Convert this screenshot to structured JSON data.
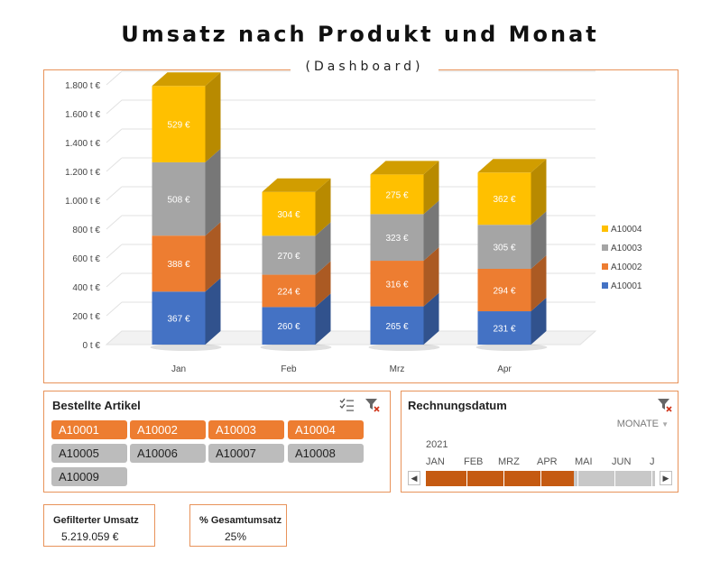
{
  "header": {
    "title": "Umsatz nach Produkt und Monat",
    "subtitle": "(Dashboard)"
  },
  "chart_data": {
    "type": "bar",
    "stacked": true,
    "three_d": true,
    "categories": [
      "Jan",
      "Feb",
      "Mrz",
      "Apr"
    ],
    "series": [
      {
        "name": "A10001",
        "color": "#4472c4",
        "values": [
          367,
          260,
          265,
          231
        ],
        "labels": [
          "367 €",
          "260 €",
          "265 €",
          "231 €"
        ]
      },
      {
        "name": "A10002",
        "color": "#ed7d31",
        "values": [
          388,
          224,
          316,
          294
        ],
        "labels": [
          "388 €",
          "224 €",
          "316 €",
          "294 €"
        ]
      },
      {
        "name": "A10003",
        "color": "#a5a5a5",
        "values": [
          508,
          270,
          323,
          305
        ],
        "labels": [
          "508 €",
          "270 €",
          "323 €",
          "305 €"
        ]
      },
      {
        "name": "A10004",
        "color": "#ffc000",
        "values": [
          529,
          304,
          275,
          362
        ],
        "labels": [
          "529 €",
          "304 €",
          "275 €",
          "362 €"
        ]
      }
    ],
    "y_ticks": [
      "0 t €",
      "200 t €",
      "400 t €",
      "600 t €",
      "800 t €",
      "1.000 t €",
      "1.200 t €",
      "1.400 t €",
      "1.600 t €",
      "1.800 t €"
    ],
    "ylim": [
      0,
      1800
    ],
    "grid": true,
    "legend": "right"
  },
  "articles": {
    "title": "Bestellte Artikel",
    "items": [
      {
        "label": "A10001",
        "selected": true
      },
      {
        "label": "A10002",
        "selected": true
      },
      {
        "label": "A10003",
        "selected": true
      },
      {
        "label": "A10004",
        "selected": true
      },
      {
        "label": "A10005",
        "selected": false
      },
      {
        "label": "A10006",
        "selected": false
      },
      {
        "label": "A10007",
        "selected": false
      },
      {
        "label": "A10008",
        "selected": false
      },
      {
        "label": "A10009",
        "selected": false
      }
    ]
  },
  "timeline": {
    "title": "Rechnungsdatum",
    "level": "MONATE",
    "year": "2021",
    "months": [
      "JAN",
      "FEB",
      "MRZ",
      "APR",
      "MAI",
      "JUN",
      "J"
    ],
    "selected_months": 4
  },
  "kpi": {
    "filtered_label": "Gefilterter Umsatz",
    "filtered_value": "5.219.059 €",
    "share_label": "% Gesamtumsatz",
    "share_value": "25%"
  },
  "colors": {
    "accent": "#ed7d31",
    "border": "#e8935a",
    "timeline_fill": "#c55a11",
    "inactive": "#bcbcbc"
  }
}
